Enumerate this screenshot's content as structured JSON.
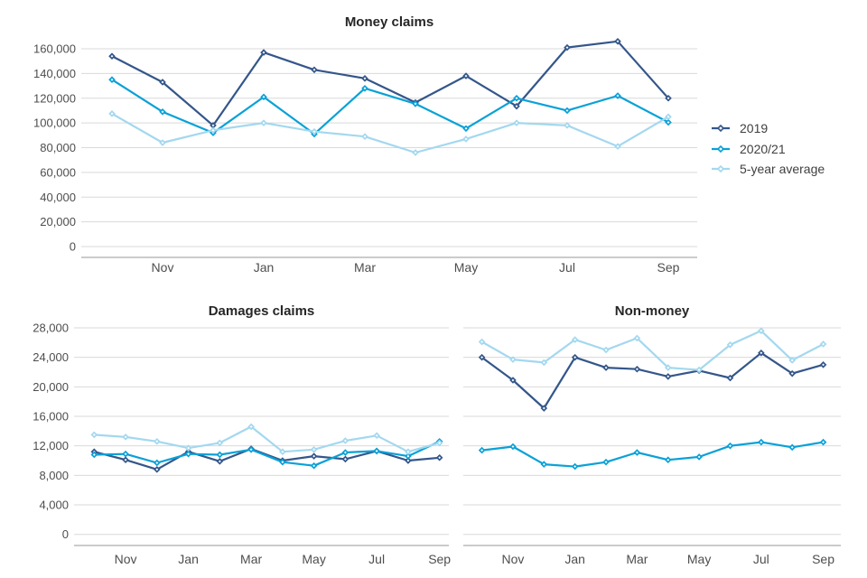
{
  "page": {
    "background": "#ffffff"
  },
  "legend": {
    "position": "right",
    "items": [
      {
        "label": "2019",
        "color": "#34568a"
      },
      {
        "label": "2020/21",
        "color": "#09a1d7"
      },
      {
        "label": "5-year average",
        "color": "#a3d8ef"
      }
    ]
  },
  "chart_data": [
    {
      "id": "money-claims",
      "type": "line",
      "title": "Money claims",
      "categories": [
        "Oct",
        "Nov",
        "Dec",
        "Jan",
        "Feb",
        "Mar",
        "Apr",
        "May",
        "Jun",
        "Jul",
        "Aug",
        "Sep"
      ],
      "x_tick_labels": [
        "Nov",
        "Jan",
        "Mar",
        "May",
        "Jul",
        "Sep"
      ],
      "ylim": [
        0,
        160000
      ],
      "ytick": 20000,
      "grid": true,
      "series": [
        {
          "name": "2019",
          "color": "#34568a",
          "values": [
            154000,
            133000,
            98000,
            157000,
            143000,
            136000,
            116500,
            138000,
            113500,
            161000,
            166000,
            120000
          ]
        },
        {
          "name": "2020/21",
          "color": "#09a1d7",
          "values": [
            135000,
            109000,
            92000,
            121000,
            91000,
            128000,
            115500,
            95500,
            120000,
            110000,
            122000,
            100500
          ]
        },
        {
          "name": "5-year average",
          "color": "#a3d8ef",
          "values": [
            107500,
            84000,
            94000,
            100000,
            93000,
            89000,
            76000,
            87000,
            100000,
            98000,
            81000,
            105000
          ]
        }
      ]
    },
    {
      "id": "damages-claims",
      "type": "line",
      "title": "Damages claims",
      "categories": [
        "Oct",
        "Nov",
        "Dec",
        "Jan",
        "Feb",
        "Mar",
        "Apr",
        "May",
        "Jun",
        "Jul",
        "Aug",
        "Sep"
      ],
      "x_tick_labels": [
        "Nov",
        "Jan",
        "Mar",
        "May",
        "Jul",
        "Sep"
      ],
      "ylim": [
        0,
        28000
      ],
      "ytick": 4000,
      "grid": true,
      "series": [
        {
          "name": "2019",
          "color": "#34568a",
          "values": [
            11200,
            10100,
            8800,
            11200,
            9900,
            11600,
            10000,
            10600,
            10200,
            11300,
            10000,
            10400
          ]
        },
        {
          "name": "2020/21",
          "color": "#09a1d7",
          "values": [
            10800,
            10900,
            9700,
            10900,
            10800,
            11500,
            9800,
            9300,
            11100,
            11300,
            10600,
            12600
          ]
        },
        {
          "name": "5-year average",
          "color": "#a3d8ef",
          "values": [
            13500,
            13200,
            12600,
            11700,
            12400,
            14600,
            11200,
            11500,
            12700,
            13400,
            11200,
            12400
          ]
        }
      ]
    },
    {
      "id": "non-money",
      "type": "line",
      "title": "Non-money",
      "categories": [
        "Oct",
        "Nov",
        "Dec",
        "Jan",
        "Feb",
        "Mar",
        "Apr",
        "May",
        "Jun",
        "Jul",
        "Aug",
        "Sep"
      ],
      "x_tick_labels": [
        "Nov",
        "Jan",
        "Mar",
        "May",
        "Jul",
        "Sep"
      ],
      "ylim": [
        0,
        28000
      ],
      "ytick": 4000,
      "grid": true,
      "series": [
        {
          "name": "2019",
          "color": "#34568a",
          "values": [
            24000,
            20900,
            17100,
            24000,
            22600,
            22400,
            21400,
            22200,
            21200,
            24600,
            21800,
            23000
          ]
        },
        {
          "name": "2020/21",
          "color": "#09a1d7",
          "values": [
            11400,
            11900,
            9500,
            9200,
            9800,
            11100,
            10100,
            10500,
            12000,
            12500,
            11800,
            12500
          ]
        },
        {
          "name": "5-year average",
          "color": "#a3d8ef",
          "values": [
            26100,
            23700,
            23300,
            26400,
            25000,
            26600,
            22600,
            22300,
            25700,
            27600,
            23600,
            25800
          ]
        }
      ]
    }
  ],
  "style": {
    "gridline_color": "#d9d9d9",
    "axisline_color": "#cbcbcb",
    "label_color": "#4e4e50",
    "title_color": "#262626"
  }
}
